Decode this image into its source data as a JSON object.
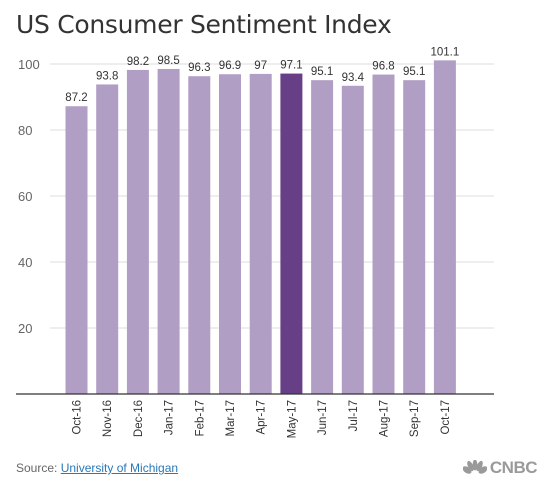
{
  "title": "US Consumer Sentiment Index",
  "source_label": "Source:",
  "source_link": "University of Michigan",
  "brand": "CNBC",
  "logo_icon": "nbc-peacock-icon",
  "colors": {
    "bar": "#b09ec4",
    "highlight": "#673f87",
    "grid": "#dddddd",
    "axis": "#333333"
  },
  "chart_data": {
    "type": "bar",
    "title": "US Consumer Sentiment Index",
    "categories": [
      "Oct-16",
      "Nov-16",
      "Dec-16",
      "Jan-17",
      "Feb-17",
      "Mar-17",
      "Apr-17",
      "May-17",
      "Jun-17",
      "Jul-17",
      "Aug-17",
      "Sep-17",
      "Oct-17"
    ],
    "values": [
      87.2,
      93.8,
      98.2,
      98.5,
      96.3,
      96.9,
      97,
      97.1,
      95.1,
      93.4,
      96.8,
      95.1,
      101.1
    ],
    "value_labels": [
      "87.2",
      "93.8",
      "98.2",
      "98.5",
      "96.3",
      "96.9",
      "97",
      "97.1",
      "95.1",
      "93.4",
      "96.8",
      "95.1",
      "101.1"
    ],
    "highlight": "May-17",
    "yticks": [
      20,
      40,
      60,
      80,
      100
    ],
    "ylim": [
      0,
      100
    ],
    "grid": true,
    "xlabel": "",
    "ylabel": ""
  }
}
